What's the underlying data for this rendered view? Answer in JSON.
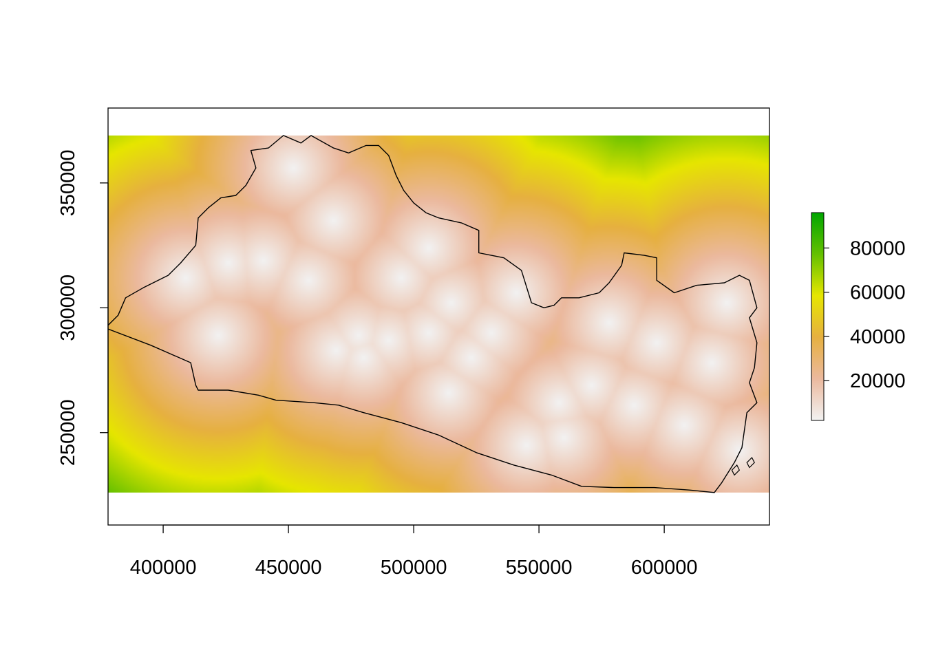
{
  "chart_data": {
    "type": "heatmap",
    "title": "",
    "xlabel": "",
    "ylabel": "",
    "xlim": [
      378000,
      642000
    ],
    "ylim": [
      213000,
      380000
    ],
    "raster_extent": {
      "x": [
        378000,
        642000
      ],
      "y": [
        226000,
        369000
      ]
    },
    "x_ticks": [
      400000,
      450000,
      500000,
      550000,
      600000
    ],
    "x_tick_labels": [
      "400000",
      "450000",
      "500000",
      "550000",
      "600000"
    ],
    "y_ticks": [
      250000,
      300000,
      350000
    ],
    "y_tick_labels": [
      "250000",
      "300000",
      "350000"
    ],
    "legend": {
      "placement": "right",
      "range": [
        2000,
        96000
      ],
      "ticks": [
        20000,
        40000,
        60000,
        80000
      ],
      "tick_labels": [
        "20000",
        "40000",
        "60000",
        "80000"
      ]
    },
    "color_ramp": [
      "#F2F2F2",
      "#EBB99E",
      "#E6B040",
      "#E6E600",
      "#64C000",
      "#00A600"
    ],
    "ramp_max": 96000,
    "max_value": 96000,
    "sample_points": [
      [
        452000,
        356000
      ],
      [
        468000,
        335000
      ],
      [
        409000,
        312000
      ],
      [
        426000,
        318000
      ],
      [
        440000,
        319000
      ],
      [
        422000,
        289000
      ],
      [
        469000,
        283000
      ],
      [
        478000,
        289000
      ],
      [
        480000,
        280000
      ],
      [
        490000,
        287000
      ],
      [
        495000,
        312000
      ],
      [
        506000,
        324000
      ],
      [
        515000,
        302000
      ],
      [
        506000,
        290000
      ],
      [
        523000,
        280000
      ],
      [
        541000,
        306000
      ],
      [
        514000,
        266000
      ],
      [
        558000,
        262000
      ],
      [
        560000,
        248000
      ],
      [
        545000,
        245000
      ],
      [
        571000,
        269000
      ],
      [
        578000,
        294000
      ],
      [
        597000,
        286000
      ],
      [
        588000,
        261000
      ],
      [
        619000,
        278000
      ],
      [
        608000,
        253000
      ],
      [
        630000,
        243000
      ],
      [
        625000,
        302000
      ],
      [
        458000,
        311000
      ],
      [
        531000,
        290000
      ]
    ],
    "boundary": [
      [
        378000,
        291500
      ],
      [
        395000,
        285000
      ],
      [
        411000,
        278000
      ],
      [
        413000,
        269000
      ],
      [
        414000,
        267000
      ],
      [
        426000,
        267000
      ],
      [
        438000,
        265000
      ],
      [
        445000,
        263000
      ],
      [
        460000,
        262000
      ],
      [
        470000,
        261000
      ],
      [
        480000,
        258000
      ],
      [
        495000,
        254000
      ],
      [
        510000,
        249000
      ],
      [
        525000,
        242000
      ],
      [
        540000,
        237000
      ],
      [
        555000,
        233000
      ],
      [
        567000,
        228500
      ],
      [
        580000,
        228000
      ],
      [
        596000,
        228000
      ],
      [
        610000,
        227000
      ],
      [
        620000,
        226000
      ],
      [
        623000,
        230000
      ],
      [
        628000,
        238000
      ],
      [
        631000,
        244000
      ],
      [
        633000,
        258000
      ],
      [
        637000,
        262000
      ],
      [
        634000,
        270000
      ],
      [
        636000,
        276000
      ],
      [
        637000,
        286000
      ],
      [
        634000,
        296000
      ],
      [
        637000,
        300000
      ],
      [
        634000,
        311000
      ],
      [
        630000,
        313000
      ],
      [
        624000,
        310000
      ],
      [
        613000,
        309000
      ],
      [
        604000,
        306000
      ],
      [
        597000,
        311000
      ],
      [
        597000,
        320000
      ],
      [
        592000,
        321000
      ],
      [
        584000,
        322000
      ],
      [
        583000,
        317000
      ],
      [
        578000,
        310000
      ],
      [
        574000,
        306000
      ],
      [
        566000,
        304000
      ],
      [
        559000,
        304000
      ],
      [
        556000,
        301000
      ],
      [
        552000,
        300000
      ],
      [
        547000,
        302000
      ],
      [
        543000,
        315000
      ],
      [
        536000,
        320000
      ],
      [
        531000,
        321000
      ],
      [
        526000,
        322000
      ],
      [
        526000,
        331000
      ],
      [
        519000,
        334000
      ],
      [
        510000,
        336000
      ],
      [
        505000,
        338000
      ],
      [
        500000,
        342000
      ],
      [
        496000,
        347000
      ],
      [
        493000,
        353000
      ],
      [
        490000,
        361000
      ],
      [
        486000,
        365000
      ],
      [
        481000,
        365000
      ],
      [
        474000,
        362000
      ],
      [
        468000,
        364000
      ],
      [
        459000,
        369000
      ],
      [
        455000,
        366000
      ],
      [
        448000,
        369000
      ],
      [
        442000,
        364000
      ],
      [
        435000,
        363000
      ],
      [
        437000,
        356000
      ],
      [
        433000,
        349000
      ],
      [
        429000,
        345000
      ],
      [
        423000,
        344000
      ],
      [
        418000,
        340000
      ],
      [
        414000,
        336000
      ],
      [
        413000,
        325000
      ],
      [
        407000,
        318000
      ],
      [
        402000,
        313000
      ],
      [
        392000,
        308000
      ],
      [
        385000,
        304000
      ],
      [
        382000,
        297000
      ],
      [
        378000,
        293000
      ]
    ],
    "islands": [
      [
        [
          628000,
          233000
        ],
        [
          630000,
          235000
        ],
        [
          629000,
          237000
        ],
        [
          627000,
          235000
        ]
      ],
      [
        [
          634000,
          236000
        ],
        [
          636000,
          238000
        ],
        [
          635000,
          240000
        ],
        [
          633000,
          238000
        ]
      ]
    ]
  }
}
